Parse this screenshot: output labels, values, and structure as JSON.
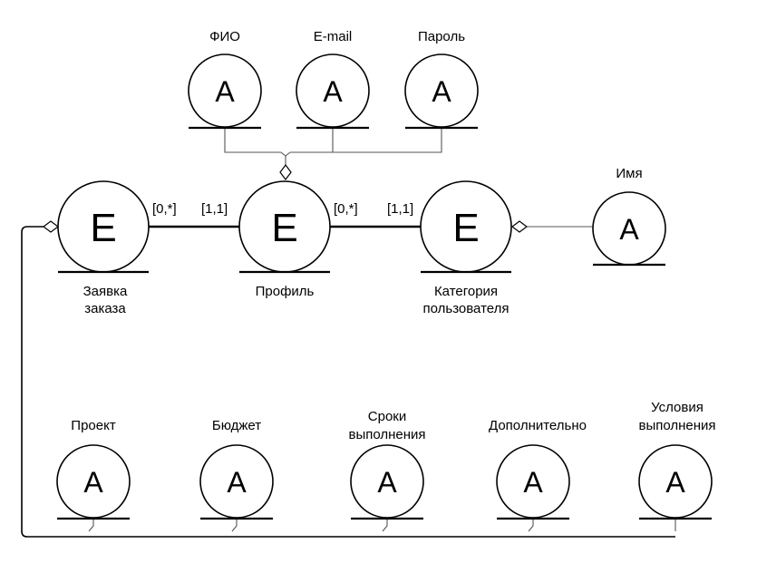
{
  "entities": {
    "order_request": {
      "glyph": "E",
      "label_line1": "Заявка",
      "label_line2": "заказа"
    },
    "profile": {
      "glyph": "E",
      "label": "Профиль"
    },
    "user_category": {
      "glyph": "E",
      "label_line1": "Категория",
      "label_line2": "пользователя"
    }
  },
  "profile_attributes": {
    "fio": {
      "glyph": "A",
      "label": "ФИО"
    },
    "email": {
      "glyph": "A",
      "label": "E-mail"
    },
    "password": {
      "glyph": "A",
      "label": "Пароль"
    }
  },
  "category_attributes": {
    "name": {
      "glyph": "A",
      "label": "Имя"
    }
  },
  "order_attributes": {
    "project": {
      "glyph": "A",
      "label": "Проект"
    },
    "budget": {
      "glyph": "A",
      "label": "Бюджет"
    },
    "deadlines": {
      "glyph": "A",
      "label_line1": "Сроки",
      "label_line2": "выполнения"
    },
    "additional": {
      "glyph": "A",
      "label": "Дополнительно"
    },
    "conditions": {
      "glyph": "A",
      "label_line1": "Условия",
      "label_line2": "выполнения"
    }
  },
  "relationships": {
    "order_profile": {
      "left": "[0,*]",
      "right": "[1,1]"
    },
    "profile_category": {
      "left": "[0,*]",
      "right": "[1,1]"
    }
  }
}
